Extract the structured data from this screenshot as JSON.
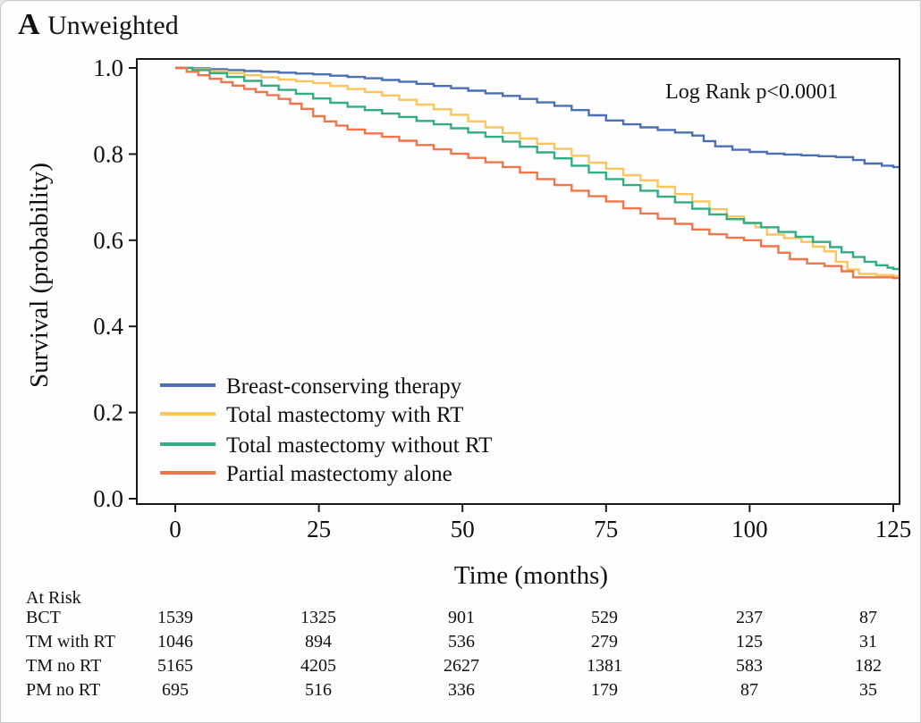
{
  "header": {
    "panel_label": "A",
    "panel_title": "Unweighted"
  },
  "chart_data": {
    "type": "line",
    "subtype": "kaplan-meier-step",
    "title": "A Unweighted",
    "annotation": "Log Rank p<0.0001",
    "xlabel": "Time (months)",
    "ylabel": "Survival (probability)",
    "xlim": [
      0,
      125
    ],
    "ylim": [
      0.0,
      1.0
    ],
    "xticks": [
      0,
      25,
      50,
      75,
      100,
      125
    ],
    "yticks": [
      1.0,
      0.8,
      0.6,
      0.4,
      0.2,
      0.0
    ],
    "grid": false,
    "legend_position": "inside-lower-left",
    "series": [
      {
        "name": "Breast-conserving therapy",
        "color": "#4a6fb5",
        "points": [
          [
            0,
            1.0
          ],
          [
            3,
            0.999
          ],
          [
            6,
            0.997
          ],
          [
            9,
            0.995
          ],
          [
            12,
            0.993
          ],
          [
            15,
            0.991
          ],
          [
            18,
            0.989
          ],
          [
            21,
            0.987
          ],
          [
            24,
            0.985
          ],
          [
            27,
            0.982
          ],
          [
            30,
            0.979
          ],
          [
            33,
            0.976
          ],
          [
            36,
            0.972
          ],
          [
            39,
            0.968
          ],
          [
            42,
            0.963
          ],
          [
            45,
            0.958
          ],
          [
            48,
            0.953
          ],
          [
            51,
            0.947
          ],
          [
            54,
            0.941
          ],
          [
            57,
            0.935
          ],
          [
            60,
            0.928
          ],
          [
            63,
            0.92
          ],
          [
            66,
            0.912
          ],
          [
            69,
            0.902
          ],
          [
            72,
            0.89
          ],
          [
            75,
            0.878
          ],
          [
            78,
            0.869
          ],
          [
            81,
            0.862
          ],
          [
            84,
            0.856
          ],
          [
            87,
            0.85
          ],
          [
            90,
            0.843
          ],
          [
            92,
            0.83
          ],
          [
            94,
            0.818
          ],
          [
            97,
            0.81
          ],
          [
            100,
            0.805
          ],
          [
            103,
            0.801
          ],
          [
            106,
            0.799
          ],
          [
            109,
            0.797
          ],
          [
            112,
            0.795
          ],
          [
            115,
            0.793
          ],
          [
            118,
            0.786
          ],
          [
            120,
            0.778
          ],
          [
            123,
            0.773
          ],
          [
            125,
            0.77
          ]
        ]
      },
      {
        "name": "Total mastectomy with RT",
        "color": "#fac55c",
        "points": [
          [
            0,
            1.0
          ],
          [
            3,
            0.997
          ],
          [
            6,
            0.993
          ],
          [
            9,
            0.988
          ],
          [
            12,
            0.983
          ],
          [
            15,
            0.978
          ],
          [
            18,
            0.973
          ],
          [
            21,
            0.969
          ],
          [
            24,
            0.965
          ],
          [
            27,
            0.958
          ],
          [
            30,
            0.951
          ],
          [
            33,
            0.944
          ],
          [
            36,
            0.936
          ],
          [
            39,
            0.926
          ],
          [
            42,
            0.915
          ],
          [
            45,
            0.904
          ],
          [
            48,
            0.891
          ],
          [
            51,
            0.876
          ],
          [
            54,
            0.862
          ],
          [
            57,
            0.849
          ],
          [
            60,
            0.836
          ],
          [
            63,
            0.824
          ],
          [
            66,
            0.812
          ],
          [
            69,
            0.796
          ],
          [
            72,
            0.78
          ],
          [
            75,
            0.766
          ],
          [
            78,
            0.751
          ],
          [
            81,
            0.739
          ],
          [
            84,
            0.724
          ],
          [
            87,
            0.707
          ],
          [
            90,
            0.69
          ],
          [
            93,
            0.672
          ],
          [
            96,
            0.655
          ],
          [
            99,
            0.64
          ],
          [
            101,
            0.63
          ],
          [
            103,
            0.613
          ],
          [
            106,
            0.605
          ],
          [
            109,
            0.596
          ],
          [
            111,
            0.585
          ],
          [
            113,
            0.574
          ],
          [
            115,
            0.55
          ],
          [
            117,
            0.532
          ],
          [
            119,
            0.522
          ],
          [
            122,
            0.519
          ],
          [
            125,
            0.517
          ]
        ]
      },
      {
        "name": "Total mastectomy without RT",
        "color": "#30ad82",
        "points": [
          [
            0,
            1.0
          ],
          [
            3,
            0.995
          ],
          [
            6,
            0.988
          ],
          [
            9,
            0.979
          ],
          [
            12,
            0.97
          ],
          [
            15,
            0.959
          ],
          [
            18,
            0.949
          ],
          [
            21,
            0.94
          ],
          [
            24,
            0.929
          ],
          [
            27,
            0.919
          ],
          [
            30,
            0.91
          ],
          [
            33,
            0.902
          ],
          [
            36,
            0.894
          ],
          [
            39,
            0.886
          ],
          [
            42,
            0.877
          ],
          [
            45,
            0.869
          ],
          [
            48,
            0.86
          ],
          [
            51,
            0.85
          ],
          [
            54,
            0.84
          ],
          [
            57,
            0.829
          ],
          [
            60,
            0.817
          ],
          [
            63,
            0.804
          ],
          [
            66,
            0.79
          ],
          [
            69,
            0.773
          ],
          [
            72,
            0.757
          ],
          [
            75,
            0.742
          ],
          [
            78,
            0.728
          ],
          [
            81,
            0.715
          ],
          [
            84,
            0.701
          ],
          [
            87,
            0.688
          ],
          [
            90,
            0.673
          ],
          [
            93,
            0.66
          ],
          [
            96,
            0.649
          ],
          [
            99,
            0.64
          ],
          [
            102,
            0.63
          ],
          [
            105,
            0.619
          ],
          [
            108,
            0.608
          ],
          [
            111,
            0.596
          ],
          [
            114,
            0.584
          ],
          [
            116,
            0.572
          ],
          [
            118,
            0.561
          ],
          [
            120,
            0.55
          ],
          [
            122,
            0.542
          ],
          [
            124,
            0.536
          ],
          [
            125,
            0.533
          ]
        ]
      },
      {
        "name": "Partial mastectomy alone",
        "color": "#f1744b",
        "points": [
          [
            0,
            1.0
          ],
          [
            2,
            0.991
          ],
          [
            4,
            0.983
          ],
          [
            6,
            0.975
          ],
          [
            8,
            0.967
          ],
          [
            10,
            0.959
          ],
          [
            12,
            0.951
          ],
          [
            14,
            0.944
          ],
          [
            16,
            0.937
          ],
          [
            18,
            0.928
          ],
          [
            20,
            0.917
          ],
          [
            22,
            0.905
          ],
          [
            24,
            0.888
          ],
          [
            26,
            0.876
          ],
          [
            28,
            0.866
          ],
          [
            30,
            0.857
          ],
          [
            33,
            0.848
          ],
          [
            36,
            0.84
          ],
          [
            39,
            0.831
          ],
          [
            42,
            0.821
          ],
          [
            45,
            0.811
          ],
          [
            48,
            0.801
          ],
          [
            51,
            0.791
          ],
          [
            54,
            0.781
          ],
          [
            57,
            0.77
          ],
          [
            60,
            0.757
          ],
          [
            63,
            0.742
          ],
          [
            66,
            0.728
          ],
          [
            69,
            0.715
          ],
          [
            72,
            0.702
          ],
          [
            75,
            0.69
          ],
          [
            78,
            0.674
          ],
          [
            81,
            0.662
          ],
          [
            84,
            0.65
          ],
          [
            87,
            0.638
          ],
          [
            90,
            0.625
          ],
          [
            93,
            0.614
          ],
          [
            96,
            0.606
          ],
          [
            99,
            0.6
          ],
          [
            102,
            0.586
          ],
          [
            105,
            0.571
          ],
          [
            107,
            0.556
          ],
          [
            110,
            0.546
          ],
          [
            113,
            0.54
          ],
          [
            116,
            0.528
          ],
          [
            118,
            0.514
          ],
          [
            125,
            0.512
          ]
        ]
      }
    ],
    "at_risk": {
      "header": "At Risk",
      "times": [
        0,
        25,
        50,
        75,
        100,
        125
      ],
      "rows": [
        {
          "label": "BCT",
          "counts": [
            1539,
            1325,
            901,
            529,
            237,
            87
          ]
        },
        {
          "label": "TM with RT",
          "counts": [
            1046,
            894,
            536,
            279,
            125,
            31
          ]
        },
        {
          "label": "TM no RT",
          "counts": [
            5165,
            4205,
            2627,
            1381,
            583,
            182
          ]
        },
        {
          "label": "PM no RT",
          "counts": [
            695,
            516,
            336,
            179,
            87,
            35
          ]
        }
      ]
    }
  }
}
